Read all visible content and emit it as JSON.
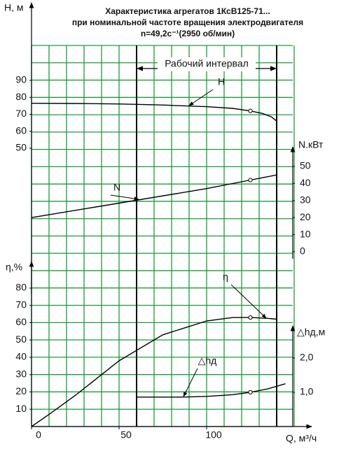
{
  "chart_data": {
    "type": "line",
    "title": [
      "Характеристика агрегатов 1КсВ125-71...",
      "при номинальной частоте вращения электродвигателя",
      "n=49,2c⁻¹(2950 об/мин)"
    ],
    "x_label": "Q, м³/ч",
    "xlim": [
      0,
      150
    ],
    "xticks": [
      0,
      50,
      100
    ],
    "grid": true,
    "grid_color": "#1e9a3c",
    "axes": {
      "H": {
        "label": "Н, м",
        "lim": [
          50,
          90
        ],
        "ticks": [
          50,
          60,
          70,
          80,
          90
        ]
      },
      "N": {
        "label": "N.кВт",
        "lim": [
          0,
          50
        ],
        "ticks": [
          0,
          10,
          20,
          30,
          40,
          50
        ]
      },
      "eta": {
        "label": "η,%",
        "lim": [
          0,
          80
        ],
        "ticks": [
          10,
          20,
          30,
          40,
          50,
          60,
          70,
          80
        ]
      },
      "dh": {
        "label": "△hд,м",
        "lim": [
          0,
          2.5
        ],
        "ticks": [
          {
            "value": 1,
            "label": "1,0"
          },
          {
            "value": 2,
            "label": "2,0"
          }
        ]
      }
    },
    "working_interval": {
      "label": "Рабочий интервал",
      "range": [
        60,
        140
      ]
    },
    "duty_q": 125,
    "series": [
      {
        "name": "Н",
        "axis": "H",
        "color": "#000000",
        "x": [
          0,
          25,
          50,
          75,
          100,
          115,
          125,
          132,
          137,
          140
        ],
        "values": [
          76.5,
          76.4,
          76.1,
          75.5,
          74.5,
          73.5,
          72,
          70.5,
          68.5,
          66
        ]
      },
      {
        "name": "N",
        "axis": "N",
        "color": "#000000",
        "x": [
          0,
          50,
          100,
          125,
          140
        ],
        "values": [
          20,
          28.5,
          37,
          42,
          45
        ]
      },
      {
        "name": "η",
        "axis": "eta",
        "color": "#000000",
        "x": [
          0,
          10,
          25,
          50,
          75,
          100,
          115,
          125,
          135,
          140
        ],
        "values": [
          0,
          7,
          18,
          38,
          53,
          61,
          63,
          63,
          62.5,
          62
        ]
      },
      {
        "name": "△hд",
        "axis": "dh",
        "color": "#000000",
        "x": [
          60,
          85,
          100,
          115,
          125,
          135,
          145
        ],
        "values": [
          0.86,
          0.86,
          0.88,
          0.93,
          1.0,
          1.1,
          1.25
        ]
      }
    ]
  }
}
